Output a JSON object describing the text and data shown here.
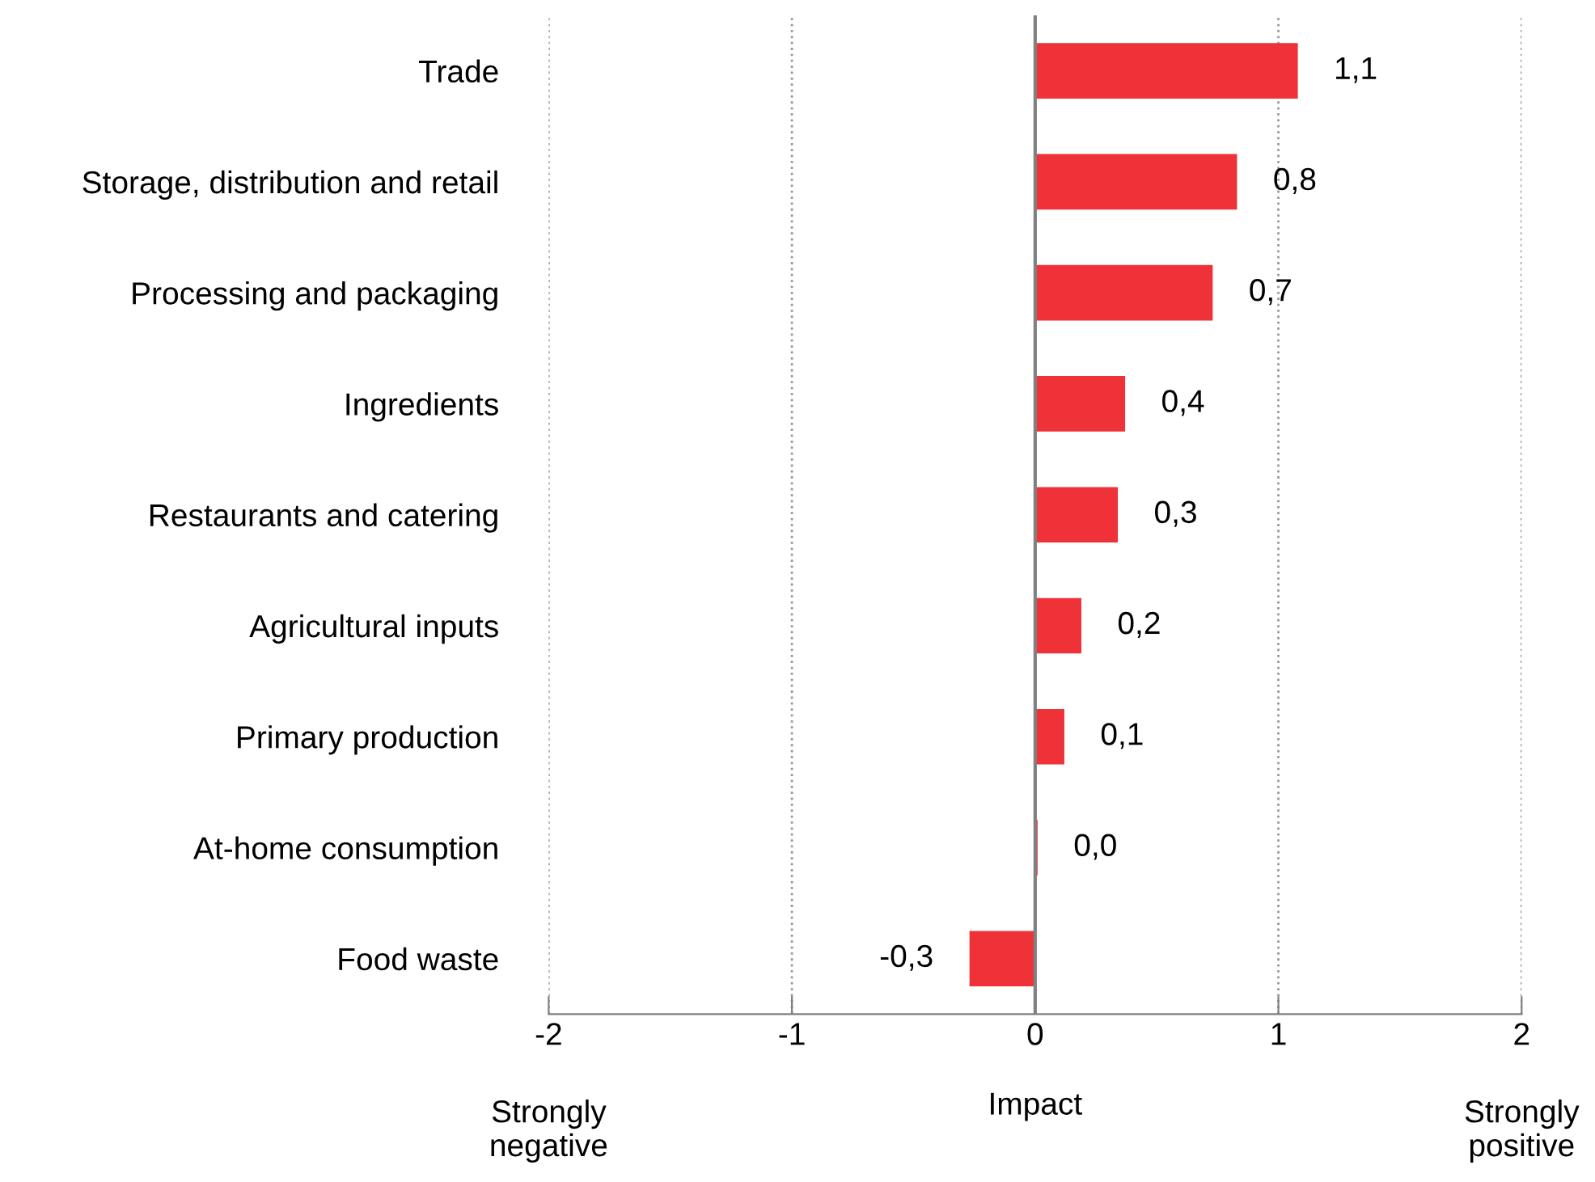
{
  "chart_data": {
    "type": "bar",
    "orientation": "horizontal",
    "xlabel": "Impact",
    "categories": [
      "Trade",
      "Storage, distribution and retail",
      "Processing and packaging",
      "Ingredients",
      "Restaurants and catering",
      "Agricultural inputs",
      "Primary production",
      "At-home consumption",
      "Food waste"
    ],
    "series": [
      {
        "color": "#ee3237",
        "values": [
          1.08,
          0.83,
          0.73,
          0.37,
          0.34,
          0.19,
          0.12,
          0.01,
          -0.27
        ],
        "value_labels": [
          "1,1",
          "0,8",
          "0,7",
          "0,4",
          "0,3",
          "0,2",
          "0,1",
          "0,0",
          "-0,3"
        ]
      }
    ],
    "xlim": [
      -2,
      2
    ],
    "xticks": [
      -2,
      -1,
      0,
      1,
      2
    ],
    "grid": "x",
    "ref_lines": [
      {
        "axis": "x",
        "value": 0,
        "color": "#808080",
        "line_style": "solid"
      }
    ],
    "annotations": [
      "Strongly\nnegative",
      "Strongly\npositive"
    ]
  }
}
